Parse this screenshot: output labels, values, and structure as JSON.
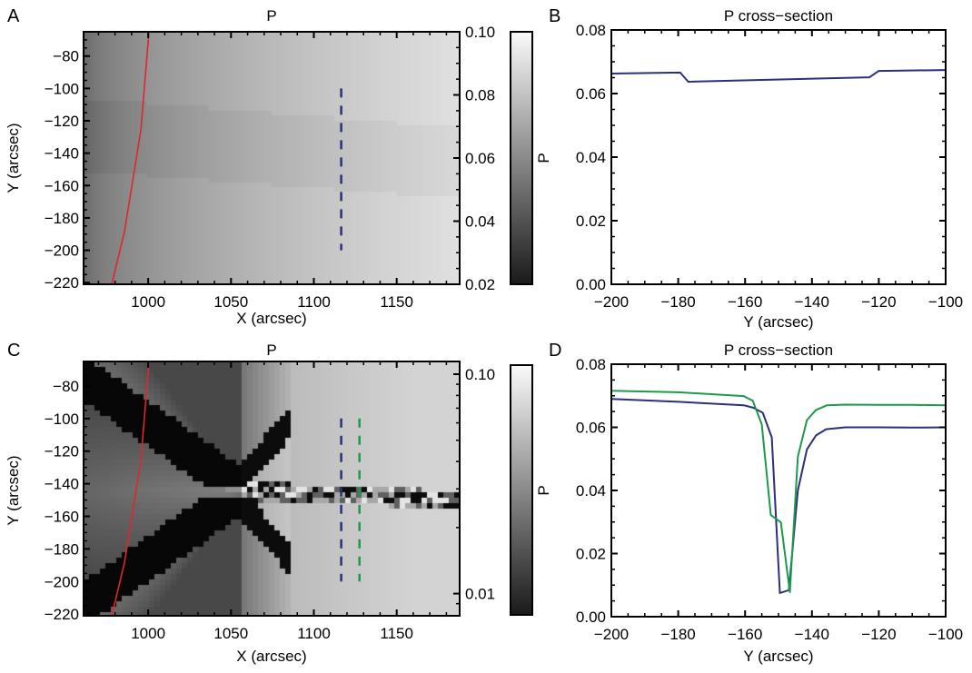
{
  "figure": {
    "panels": [
      {
        "letter": "A",
        "title": "P",
        "xlabel": "X (arcsec)",
        "ylabel": "Y (arcsec)",
        "colorbar_label": "P"
      },
      {
        "letter": "B",
        "title": "P cross−section",
        "xlabel": "Y (arcsec)",
        "ylabel": "P"
      },
      {
        "letter": "C",
        "title": "P",
        "xlabel": "X (arcsec)",
        "ylabel": "Y (arcsec)",
        "colorbar_label": "P"
      },
      {
        "letter": "D",
        "title": "P cross−section",
        "xlabel": "Y (arcsec)",
        "ylabel": "P"
      }
    ],
    "colors": {
      "series_blue": "#2b2f7c",
      "series_green": "#1c9a4c",
      "boundary_red": "#e0262d",
      "axis": "#000000"
    }
  },
  "chart_data": [
    {
      "id": "A",
      "type": "heatmap",
      "title": "P",
      "xlabel": "X (arcsec)",
      "ylabel": "Y (arcsec)",
      "xlim": [
        961,
        1188
      ],
      "ylim": [
        -221,
        -65
      ],
      "xticks": [
        "1000",
        "1050",
        "1100",
        "1150"
      ],
      "xtick_values": [
        1000,
        1050,
        1100,
        1150
      ],
      "yticks": [
        "−80",
        "−100",
        "−120",
        "−140",
        "−160",
        "−180",
        "−200",
        "−220"
      ],
      "ytick_values": [
        -80,
        -100,
        -120,
        -140,
        -160,
        -180,
        -200,
        -220
      ],
      "colorbar": {
        "label": "P",
        "scale": "linear",
        "range": [
          0.02,
          0.1
        ],
        "ticks": [
          "0.10",
          "0.08",
          "0.06",
          "0.04",
          "0.02"
        ],
        "tick_values": [
          0.1,
          0.08,
          0.06,
          0.04,
          0.02
        ]
      },
      "overlays": [
        {
          "name": "limb",
          "color": "#e0262d",
          "style": "solid",
          "x": [
            1000.5,
            995.6,
            985.7,
            978.0
          ],
          "y": [
            -65,
            -125.6,
            -188.5,
            -221
          ]
        },
        {
          "name": "cut",
          "color": "#2b2f7c",
          "style": "dashed",
          "x": [
            1116.5,
            1116.5
          ],
          "y": [
            -100,
            -200
          ]
        }
      ]
    },
    {
      "id": "B",
      "type": "line",
      "title": "P cross−section",
      "xlabel": "Y (arcsec)",
      "ylabel": "P",
      "xlim": [
        -200,
        -100
      ],
      "ylim": [
        0.0,
        0.08
      ],
      "xticks": [
        "−200",
        "−180",
        "−160",
        "−140",
        "−120",
        "−100"
      ],
      "xtick_values": [
        -200,
        -180,
        -160,
        -140,
        -120,
        -100
      ],
      "yticks": [
        "0.00",
        "0.02",
        "0.04",
        "0.06",
        "0.08"
      ],
      "ytick_values": [
        0.0,
        0.02,
        0.04,
        0.06,
        0.08
      ],
      "series": [
        {
          "name": "blue cut",
          "color": "#2b2f7c",
          "x": [
            -200,
            -179.4,
            -177,
            -122.8,
            -120,
            -100
          ],
          "y": [
            0.0663,
            0.0666,
            0.0637,
            0.0651,
            0.0671,
            0.0674
          ]
        }
      ]
    },
    {
      "id": "C",
      "type": "heatmap",
      "title": "P",
      "xlabel": "X (arcsec)",
      "ylabel": "Y (arcsec)",
      "xlim": [
        961,
        1188
      ],
      "ylim": [
        -221,
        -65
      ],
      "xticks": [
        "1000",
        "1050",
        "1100",
        "1150"
      ],
      "xtick_values": [
        1000,
        1050,
        1100,
        1150
      ],
      "yticks": [
        "−80",
        "−100",
        "−120",
        "−140",
        "−160",
        "−180",
        "−200",
        "−220"
      ],
      "ytick_values": [
        -80,
        -100,
        -120,
        -140,
        -160,
        -180,
        -200,
        -220
      ],
      "colorbar": {
        "label": "P",
        "scale": "log",
        "range": [
          0.008,
          0.11
        ],
        "ticks": [
          "0.10",
          "0.01"
        ],
        "tick_values": [
          0.1,
          0.01
        ]
      },
      "overlays": [
        {
          "name": "limb",
          "color": "#e0262d",
          "style": "solid",
          "x": [
            1000.5,
            995.6,
            985.7,
            978.0
          ],
          "y": [
            -65,
            -125.6,
            -188.5,
            -221
          ]
        },
        {
          "name": "cut blue",
          "color": "#2b2f7c",
          "style": "dashed",
          "x": [
            1116.5,
            1116.5
          ],
          "y": [
            -100,
            -200
          ]
        },
        {
          "name": "cut green",
          "color": "#1c9a4c",
          "style": "dashed",
          "x": [
            1127.5,
            1127.5
          ],
          "y": [
            -100,
            -200
          ]
        }
      ]
    },
    {
      "id": "D",
      "type": "line",
      "title": "P cross−section",
      "xlabel": "Y (arcsec)",
      "ylabel": "P",
      "xlim": [
        -200,
        -100
      ],
      "ylim": [
        0.0,
        0.08
      ],
      "xticks": [
        "−200",
        "−180",
        "−160",
        "−140",
        "−120",
        "−100"
      ],
      "xtick_values": [
        -200,
        -180,
        -160,
        -140,
        -120,
        -100
      ],
      "yticks": [
        "0.00",
        "0.02",
        "0.04",
        "0.06",
        "0.08"
      ],
      "ytick_values": [
        0.0,
        0.02,
        0.04,
        0.06,
        0.08
      ],
      "series": [
        {
          "name": "blue cut",
          "color": "#2b2f7c",
          "x": [
            -200,
            -180,
            -160.4,
            -157.5,
            -154.7,
            -152.0,
            -149.6,
            -146.9,
            -144.2,
            -141.5,
            -138.8,
            -135.8,
            -130,
            -120,
            -110,
            -100
          ],
          "y": [
            0.069,
            0.0681,
            0.067,
            0.0662,
            0.0646,
            0.0568,
            0.0075,
            0.0084,
            0.04,
            0.053,
            0.0574,
            0.0594,
            0.06,
            0.06,
            0.0599,
            0.06
          ]
        },
        {
          "name": "green cut",
          "color": "#1c9a4c",
          "x": [
            -200,
            -180,
            -160.4,
            -157.7,
            -155.0,
            -152.3,
            -149.3,
            -146.6,
            -144.2,
            -141.5,
            -138.8,
            -135.5,
            -130,
            -120,
            -110,
            -100
          ],
          "y": [
            0.0716,
            0.0711,
            0.0699,
            0.0684,
            0.0609,
            0.0322,
            0.0299,
            0.0078,
            0.0507,
            0.0623,
            0.0655,
            0.067,
            0.0672,
            0.0671,
            0.0671,
            0.067
          ]
        }
      ]
    }
  ]
}
